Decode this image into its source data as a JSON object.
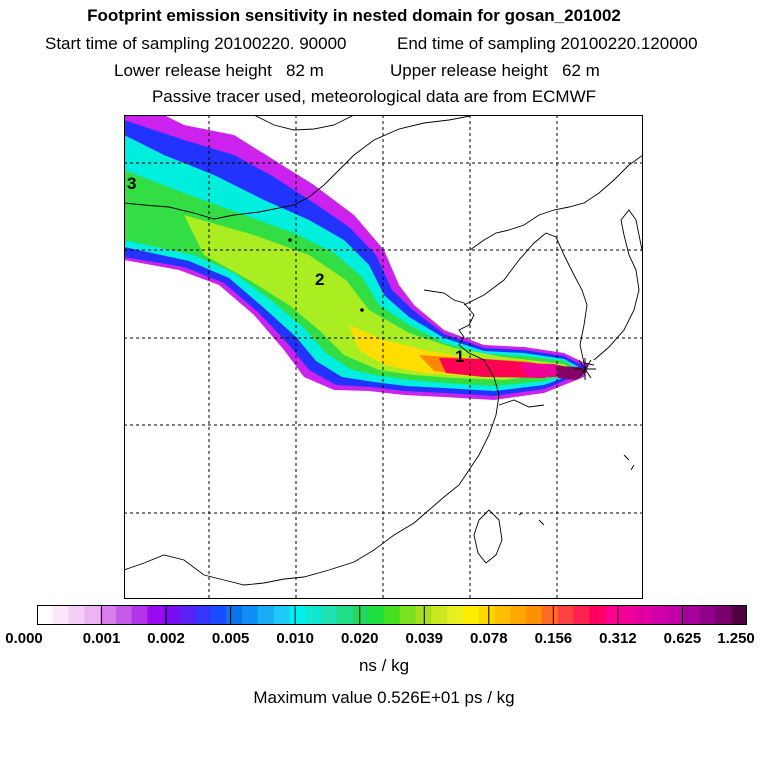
{
  "title": "Footprint emission sensitivity in nested domain for gosan_201002",
  "sampling": {
    "start_label": "Start time of sampling",
    "start_value": "20100220. 90000",
    "end_label": "End time of sampling",
    "end_value": "20100220.120000"
  },
  "release": {
    "lower_label": "Lower release height",
    "lower_value": "82 m",
    "upper_label": "Upper release height",
    "upper_value": "62 m"
  },
  "tracer_note": "Passive tracer used, meteorological data are from ECMWF",
  "map": {
    "region_labels": [
      "1",
      "2",
      "3"
    ],
    "receptor_marker": "gosan-receptor-star",
    "plume_colors": [
      "#cc22ee",
      "#2233ff",
      "#00eedd",
      "#33dd44",
      "#aaee22",
      "#ffdd00",
      "#ff8800",
      "#ff0055",
      "#ee0099",
      "#880066"
    ]
  },
  "colorbar": {
    "segment_colors": [
      "#ffffff",
      "#fbe7fb",
      "#f5cdf6",
      "#eeb3f1",
      "#d880ea",
      "#c55ae6",
      "#b233e8",
      "#9a0cf0",
      "#7a0cf0",
      "#5a20f5",
      "#3535ff",
      "#1c4cff",
      "#0874f0",
      "#0f8ef5",
      "#18acf6",
      "#1ccbf5",
      "#00f0f0",
      "#10e8d0",
      "#1ee0b0",
      "#22dd88",
      "#22d860",
      "#20e040",
      "#44e020",
      "#7ae020",
      "#a8e020",
      "#cce820",
      "#e8f020",
      "#ffee00",
      "#ffd800",
      "#ffc000",
      "#ffa800",
      "#ff9000",
      "#ff6a20",
      "#ff4040",
      "#ff2050",
      "#ff0060",
      "#ff0090",
      "#ee0099",
      "#e000a0",
      "#d000a8",
      "#c000a8",
      "#a8009a",
      "#900088",
      "#7a0070",
      "#500040"
    ],
    "ticks": [
      "0.000",
      "0.001",
      "0.002",
      "0.005",
      "0.010",
      "0.020",
      "0.039",
      "0.078",
      "0.156",
      "0.312",
      "0.625",
      "1.250"
    ]
  },
  "units": "ns / kg",
  "max_value_text": "Maximum value  0.526E+01 ps / kg"
}
